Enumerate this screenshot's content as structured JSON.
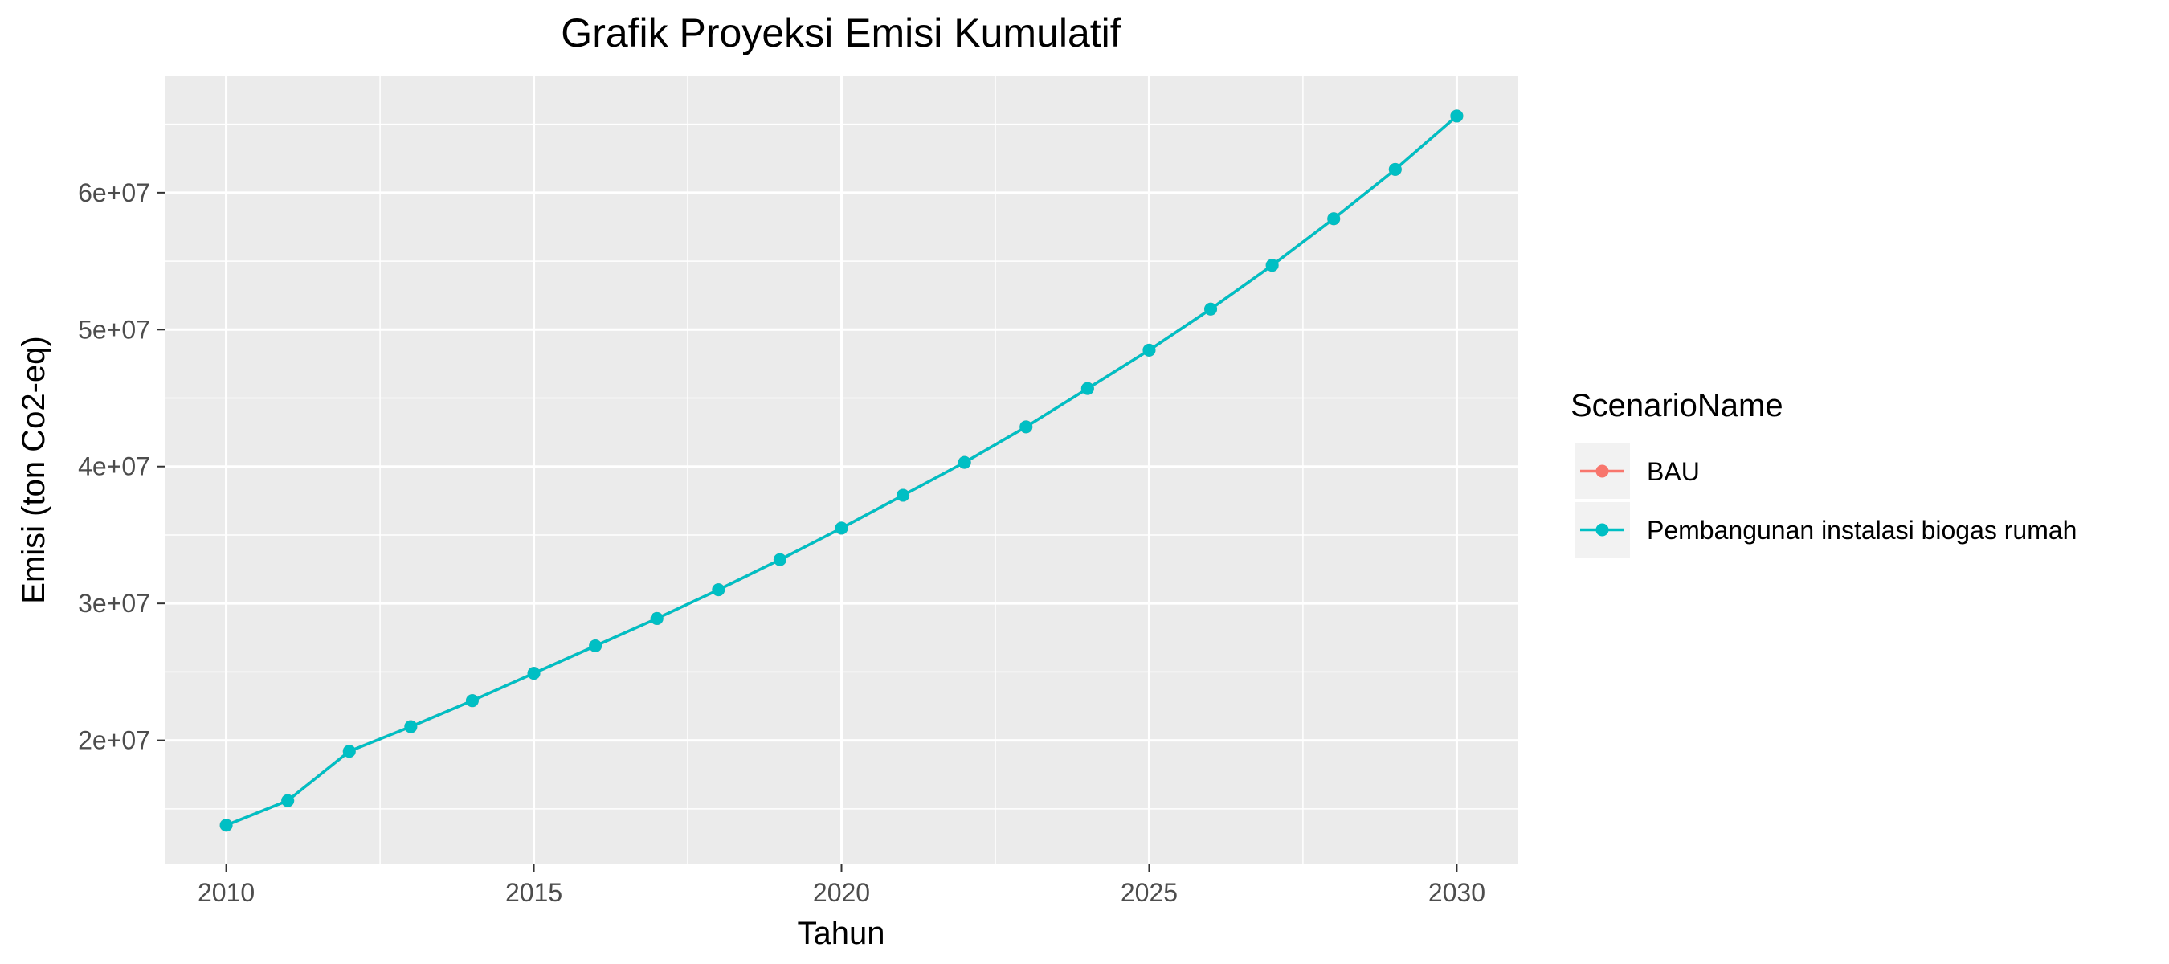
{
  "chart_data": {
    "type": "line",
    "title": "Grafik Proyeksi Emisi Kumulatif",
    "xlabel": "Tahun",
    "ylabel": "Emisi (ton Co2-eq)",
    "x": [
      2010,
      2011,
      2012,
      2013,
      2014,
      2015,
      2016,
      2017,
      2018,
      2019,
      2020,
      2021,
      2022,
      2023,
      2024,
      2025,
      2026,
      2027,
      2028,
      2029,
      2030
    ],
    "series": [
      {
        "name": "BAU",
        "color": "#F8766D",
        "values": [
          13800000,
          15600000,
          19200000,
          21000000,
          22900000,
          24900000,
          26900000,
          28900000,
          31000000,
          33200000,
          35500000,
          37900000,
          40300000,
          42900000,
          45700000,
          48500000,
          51500000,
          54700000,
          58100000,
          61700000,
          65600000
        ]
      },
      {
        "name": "Pembangunan instalasi biogas rumah",
        "color": "#00BFC4",
        "values": [
          13800000,
          15600000,
          19200000,
          21000000,
          22900000,
          24900000,
          26900000,
          28900000,
          31000000,
          33200000,
          35500000,
          37900000,
          40300000,
          42900000,
          45700000,
          48500000,
          51500000,
          54700000,
          58100000,
          61700000,
          65600000
        ]
      }
    ],
    "xlim": [
      2009,
      2031
    ],
    "ylim": [
      11000000,
      68500000
    ],
    "x_ticks": [
      2010,
      2015,
      2020,
      2025,
      2030
    ],
    "x_tick_labels": [
      "2010",
      "2015",
      "2020",
      "2025",
      "2030"
    ],
    "y_ticks": [
      20000000,
      30000000,
      40000000,
      50000000,
      60000000
    ],
    "y_tick_labels": [
      "2e+07",
      "3e+07",
      "4e+07",
      "5e+07",
      "6e+07"
    ],
    "legend_title": "ScenarioName",
    "legend_position": "right",
    "grid": true,
    "panel_background": "#EBEBEB"
  }
}
